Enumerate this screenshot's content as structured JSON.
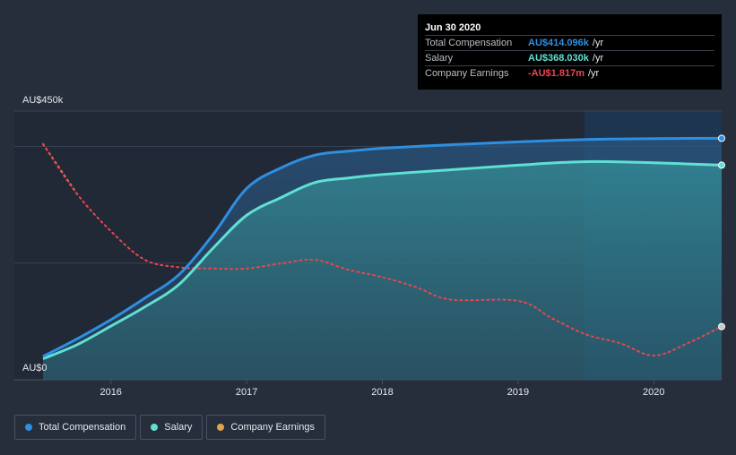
{
  "colors": {
    "total": "#2e8fe0",
    "salary": "#5fe0d2",
    "earnings": "#e8474d",
    "earnings_legend": "#e0a54a"
  },
  "tooltip": {
    "date": "Jun 30 2020",
    "rows": [
      {
        "label": "Total Compensation",
        "value": "AU$414.096k",
        "unit": "/yr"
      },
      {
        "label": "Salary",
        "value": "AU$368.030k",
        "unit": "/yr"
      },
      {
        "label": "Company Earnings",
        "value": "-AU$1.817m",
        "unit": "/yr"
      }
    ]
  },
  "legend": {
    "items": [
      {
        "label": "Total Compensation"
      },
      {
        "label": "Salary"
      },
      {
        "label": "Company Earnings"
      }
    ]
  },
  "chart_data": {
    "type": "line",
    "title": "",
    "xlabel": "",
    "ylabel": "",
    "y_top_label": "AU$450k",
    "y_bottom_label": "AU$0",
    "ylim": [
      0,
      450
    ],
    "xlim": [
      2015.5,
      2020.5
    ],
    "x_ticks": [
      {
        "value": 2016,
        "label": "2016"
      },
      {
        "value": 2017,
        "label": "2017"
      },
      {
        "value": 2018,
        "label": "2018"
      },
      {
        "value": 2019,
        "label": "2019"
      },
      {
        "value": 2020,
        "label": "2020"
      }
    ],
    "gridlines_y": [
      0,
      200,
      400
    ],
    "series": [
      {
        "name": "Total Compensation",
        "unit": "AU$k",
        "points": [
          [
            2015.5,
            40
          ],
          [
            2015.75,
            70
          ],
          [
            2016.0,
            103
          ],
          [
            2016.25,
            140
          ],
          [
            2016.5,
            180
          ],
          [
            2016.75,
            248
          ],
          [
            2017.0,
            328
          ],
          [
            2017.25,
            363
          ],
          [
            2017.5,
            385
          ],
          [
            2017.75,
            392
          ],
          [
            2018.0,
            397
          ],
          [
            2018.5,
            403
          ],
          [
            2019.0,
            408
          ],
          [
            2019.5,
            412
          ],
          [
            2020.0,
            413.5
          ],
          [
            2020.5,
            414.1
          ]
        ]
      },
      {
        "name": "Salary",
        "unit": "AU$k",
        "points": [
          [
            2015.5,
            36
          ],
          [
            2015.75,
            60
          ],
          [
            2016.0,
            92
          ],
          [
            2016.25,
            125
          ],
          [
            2016.5,
            163
          ],
          [
            2016.75,
            225
          ],
          [
            2017.0,
            282
          ],
          [
            2017.25,
            312
          ],
          [
            2017.5,
            338
          ],
          [
            2017.75,
            346
          ],
          [
            2018.0,
            352
          ],
          [
            2018.5,
            360
          ],
          [
            2019.0,
            368
          ],
          [
            2019.5,
            374
          ],
          [
            2020.0,
            372
          ],
          [
            2020.5,
            368.0
          ]
        ]
      },
      {
        "name": "Company Earnings",
        "unit": "AU$m",
        "points": [
          [
            2015.5,
            -0.35
          ],
          [
            2015.75,
            -0.75
          ],
          [
            2016.0,
            -1.05
          ],
          [
            2016.25,
            -1.28
          ],
          [
            2016.5,
            -1.34
          ],
          [
            2016.75,
            -1.35
          ],
          [
            2017.0,
            -1.35
          ],
          [
            2017.25,
            -1.31
          ],
          [
            2017.5,
            -1.28
          ],
          [
            2017.75,
            -1.36
          ],
          [
            2018.0,
            -1.42
          ],
          [
            2018.25,
            -1.5
          ],
          [
            2018.5,
            -1.6
          ],
          [
            2019.0,
            -1.61
          ],
          [
            2019.25,
            -1.75
          ],
          [
            2019.5,
            -1.88
          ],
          [
            2019.75,
            -1.95
          ],
          [
            2020.0,
            -2.05
          ],
          [
            2020.25,
            -1.95
          ],
          [
            2020.5,
            -1.817
          ]
        ],
        "note": "right-scale, plotted against hidden secondary axis"
      }
    ]
  }
}
